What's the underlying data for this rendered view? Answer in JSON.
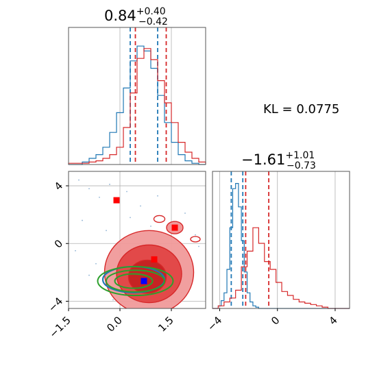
{
  "colors": {
    "red": "#d62728",
    "blue": "#1f77b4",
    "green": "#2ca02c",
    "marker_red": "#ff0000",
    "marker_blue": "#0000ff",
    "grid": "#b0b0b0"
  },
  "annotation": {
    "kl_text": "KL = 0.0775"
  },
  "chart_data": [
    {
      "type": "histogram",
      "panel": "top-left marginal",
      "title": {
        "main": "0.84",
        "sup": "+0.40",
        "sub": "−0.42"
      },
      "xlim": [
        -1.5,
        2.5
      ],
      "grid": true,
      "series": [
        {
          "color": "blue",
          "quantiles": [
            0.3,
            1.1
          ],
          "x": [
            -1.5,
            -1.1,
            -0.9,
            -0.7,
            -0.5,
            -0.3,
            -0.1,
            0.1,
            0.3,
            0.5,
            0.7,
            0.9,
            1.1,
            1.3,
            1.5,
            1.7,
            1.9,
            2.1,
            2.3,
            2.5
          ],
          "y": [
            0,
            0.02,
            0.05,
            0.08,
            0.14,
            0.26,
            0.42,
            0.62,
            0.84,
            0.96,
            0.92,
            0.78,
            0.56,
            0.34,
            0.18,
            0.08,
            0.03,
            0.01,
            0,
            0
          ]
        },
        {
          "color": "red",
          "quantiles": [
            0.45,
            1.35
          ],
          "x": [
            -1.5,
            -1.1,
            -0.9,
            -0.7,
            -0.5,
            -0.3,
            -0.1,
            0.1,
            0.3,
            0.5,
            0.7,
            0.9,
            1.1,
            1.3,
            1.5,
            1.7,
            1.9,
            2.1,
            2.3,
            2.5
          ],
          "y": [
            0.01,
            0.01,
            0.02,
            0.03,
            0.05,
            0.08,
            0.14,
            0.3,
            0.58,
            0.86,
            0.94,
            0.85,
            0.68,
            0.5,
            0.34,
            0.18,
            0.1,
            0.05,
            0.02,
            0.01
          ]
        }
      ]
    },
    {
      "type": "contour",
      "panel": "bottom-left joint",
      "xlim": [
        -1.5,
        2.5
      ],
      "ylim": [
        -4.5,
        5
      ],
      "xticks": [
        "−1.5",
        "0.0",
        "1.5"
      ],
      "xtick_values": [
        -1.5,
        0.0,
        1.5
      ],
      "yticks": [
        "−4",
        "0",
        "4"
      ],
      "ytick_values": [
        -4,
        0,
        4
      ],
      "grid": true,
      "red_levels": [
        {
          "cx": 0.85,
          "cy": -2.0,
          "rx": 1.3,
          "ry": 2.9
        },
        {
          "cx": 0.85,
          "cy": -2.1,
          "rx": 0.95,
          "ry": 2.0
        },
        {
          "cx": 0.8,
          "cy": -2.3,
          "rx": 0.55,
          "ry": 1.15
        }
      ],
      "green_levels": [
        {
          "cx": 0.45,
          "cy": -2.6,
          "rx": 1.1,
          "ry": 1.0
        },
        {
          "cx": 0.45,
          "cy": -2.6,
          "rx": 0.85,
          "ry": 0.75
        },
        {
          "cx": 0.4,
          "cy": -2.6,
          "rx": 0.55,
          "ry": 0.5
        }
      ],
      "blue_level": {
        "cx": 0.4,
        "cy": -2.5,
        "rx": 0.9,
        "ry": 0.9
      },
      "markers": [
        {
          "x": -0.1,
          "y": 3.0,
          "color": "marker_red"
        },
        {
          "x": 1.6,
          "y": 1.1,
          "color": "marker_red"
        },
        {
          "x": 1.0,
          "y": -1.1,
          "color": "marker_red"
        },
        {
          "x": 0.7,
          "y": -2.6,
          "color": "marker_blue"
        }
      ]
    },
    {
      "type": "histogram",
      "panel": "bottom-right marginal",
      "title": {
        "main": "−1.61",
        "sup": "+1.01",
        "sub": "−0.73"
      },
      "xlim": [
        -4.5,
        5
      ],
      "xticks": [
        "−4",
        "0",
        "4"
      ],
      "xtick_values": [
        -4,
        0,
        4
      ],
      "grid": true,
      "series": [
        {
          "color": "blue",
          "quantiles": [
            -3.2,
            -2.4
          ],
          "x": [
            -4.5,
            -4.1,
            -3.9,
            -3.7,
            -3.5,
            -3.3,
            -3.1,
            -2.9,
            -2.7,
            -2.5,
            -2.3,
            -2.1,
            -1.9,
            -1.7,
            -1.5,
            -1.3,
            5
          ],
          "y": [
            0,
            0.02,
            0.06,
            0.12,
            0.3,
            0.62,
            0.92,
            0.96,
            0.78,
            0.52,
            0.28,
            0.12,
            0.05,
            0.02,
            0.01,
            0,
            0
          ]
        },
        {
          "color": "red",
          "quantiles": [
            -2.2,
            -0.6
          ],
          "x": [
            -4.5,
            -4.1,
            -3.7,
            -3.3,
            -2.9,
            -2.5,
            -2.1,
            -1.7,
            -1.3,
            -0.9,
            -0.5,
            -0.1,
            0.3,
            0.7,
            1.1,
            1.5,
            1.9,
            2.3,
            2.7,
            3.1,
            3.5,
            5
          ],
          "y": [
            0,
            0.02,
            0.05,
            0.08,
            0.14,
            0.32,
            0.44,
            0.62,
            0.5,
            0.36,
            0.3,
            0.2,
            0.13,
            0.1,
            0.07,
            0.05,
            0.04,
            0.03,
            0.02,
            0.01,
            0,
            0
          ]
        }
      ]
    }
  ]
}
